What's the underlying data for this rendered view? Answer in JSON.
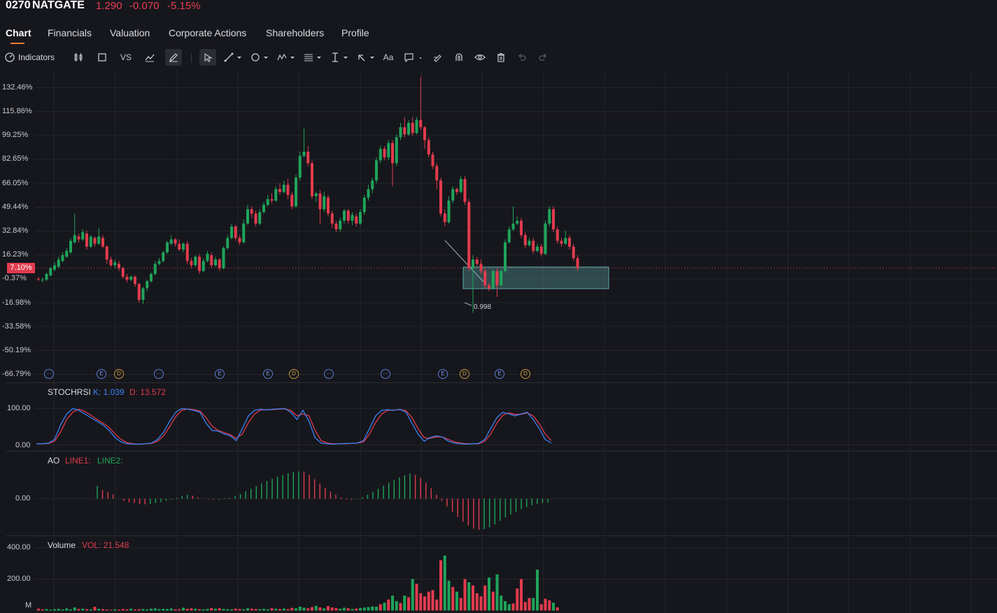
{
  "header": {
    "ticker": "0270",
    "name": "NATGATE",
    "price": "1.290",
    "change": "-0.070",
    "change_pct": "-5.15%"
  },
  "tabs": [
    {
      "label": "Chart",
      "active": true
    },
    {
      "label": "Financials"
    },
    {
      "label": "Valuation"
    },
    {
      "label": "Corporate Actions"
    },
    {
      "label": "Shareholders"
    },
    {
      "label": "Profile"
    }
  ],
  "toolbar": {
    "indicators_label": "Indicators",
    "vs_label": "VS",
    "text_tool_label": "Aa",
    "icons": [
      "indicators-gauge-icon",
      "candlestick-icon",
      "rectangle-icon",
      "compare-vs-icon",
      "chart-type-icon",
      "pen-icon",
      "cursor-icon",
      "trend-line-icon",
      "circle-shape-icon",
      "pattern-icon",
      "fibonacci-icon",
      "measure-icon",
      "arrow-icon",
      "text-icon",
      "comment-icon",
      "brush-icon",
      "magnet-icon",
      "eye-icon",
      "trash-icon",
      "undo-icon",
      "redo-icon"
    ]
  },
  "colors": {
    "up": "#1fa45a",
    "down": "#e23b4e",
    "background": "#16171c",
    "grid": "#24262d",
    "k_line": "#3b82f6",
    "d_line": "#e23b4e"
  },
  "main_axis": {
    "labels": [
      "132.46%",
      "115.86%",
      "99.25%",
      "82.65%",
      "66.05%",
      "49.44%",
      "32.84%",
      "16.23%",
      "-0.37%",
      "-16.98%",
      "-33.58%",
      "-50.19%",
      "-66.79%"
    ],
    "current_tag": "7.10%",
    "low_marker_label": "0.998"
  },
  "events": [
    "···",
    "E",
    "D",
    "···",
    "E",
    "E",
    "D",
    "···",
    "···",
    "E",
    "D",
    "E",
    "D"
  ],
  "stochrsi": {
    "title": "STOCHRSI",
    "k_label": "K: 1.039",
    "d_label": "D: 13.572",
    "axis": [
      "100.00",
      "0.00"
    ]
  },
  "ao": {
    "title": "AO",
    "line1_label": "LINE1:",
    "line2_label": "LINE2:",
    "axis": [
      "0.00"
    ]
  },
  "volume": {
    "title": "Volume",
    "vol_label": "VOL: 21.548",
    "axis": [
      "400.00",
      "200.00"
    ],
    "unit": "M"
  },
  "chart_data": {
    "type": "candlestick",
    "title": "",
    "y_unit": "% change",
    "ylim": [
      -66.79,
      132.46
    ],
    "candles": [
      [
        -0.5,
        -1.0,
        1.0,
        -2.0
      ],
      [
        -1.5,
        -1.0,
        0.5,
        -3.0
      ],
      [
        -1.0,
        3.0,
        4.0,
        -2.0
      ],
      [
        2.0,
        7.0,
        8.0,
        1.0
      ],
      [
        6.0,
        9.0,
        11.0,
        5.0
      ],
      [
        8.0,
        13.0,
        15.0,
        7.0
      ],
      [
        12.0,
        16.0,
        18.0,
        11.0
      ],
      [
        15.0,
        19.0,
        21.0,
        14.0
      ],
      [
        18.0,
        26.0,
        28.0,
        17.0
      ],
      [
        25.0,
        30.0,
        45.0,
        24.0
      ],
      [
        29.0,
        27.0,
        31.0,
        25.0
      ],
      [
        27.0,
        32.0,
        34.0,
        26.0
      ],
      [
        31.0,
        22.0,
        33.0,
        20.0
      ],
      [
        22.0,
        29.0,
        30.0,
        21.0
      ],
      [
        28.0,
        24.0,
        29.0,
        22.0
      ],
      [
        24.0,
        29.0,
        35.0,
        23.0
      ],
      [
        28.0,
        22.0,
        30.0,
        21.0
      ],
      [
        22.0,
        13.0,
        23.0,
        10.0
      ],
      [
        13.0,
        9.0,
        15.0,
        8.0
      ],
      [
        9.0,
        11.0,
        13.0,
        7.0
      ],
      [
        10.0,
        7.0,
        12.0,
        5.0
      ],
      [
        7.0,
        1.0,
        8.0,
        0.0
      ],
      [
        1.0,
        -1.0,
        3.0,
        -3.0
      ],
      [
        -1.0,
        1.0,
        2.0,
        -2.0
      ],
      [
        1.0,
        -4.0,
        2.0,
        -6.0
      ],
      [
        -4.0,
        -15.0,
        -3.0,
        -17.0
      ],
      [
        -15.0,
        -7.0,
        -6.0,
        -18.0
      ],
      [
        -7.0,
        -2.0,
        -1.0,
        -9.0
      ],
      [
        -2.0,
        3.0,
        4.0,
        -3.0
      ],
      [
        3.0,
        10.0,
        12.0,
        2.0
      ],
      [
        10.0,
        12.0,
        14.0,
        9.0
      ],
      [
        12.0,
        18.0,
        19.0,
        11.0
      ],
      [
        18.0,
        25.0,
        26.0,
        17.0
      ],
      [
        24.0,
        27.0,
        30.0,
        23.0
      ],
      [
        27.0,
        24.0,
        28.0,
        22.0
      ],
      [
        24.0,
        20.0,
        27.0,
        19.0
      ],
      [
        20.0,
        24.0,
        25.0,
        18.0
      ],
      [
        24.0,
        12.0,
        26.0,
        10.0
      ],
      [
        12.0,
        9.0,
        14.0,
        7.0
      ],
      [
        9.0,
        15.0,
        16.0,
        8.0
      ],
      [
        15.0,
        5.0,
        17.0,
        3.0
      ],
      [
        5.0,
        12.0,
        14.0,
        4.0
      ],
      [
        12.0,
        17.0,
        19.0,
        11.0
      ],
      [
        16.0,
        9.0,
        18.0,
        7.0
      ],
      [
        9.0,
        13.0,
        15.0,
        8.0
      ],
      [
        13.0,
        7.0,
        14.0,
        5.0
      ],
      [
        7.0,
        21.0,
        22.0,
        6.0
      ],
      [
        21.0,
        28.0,
        30.0,
        20.0
      ],
      [
        28.0,
        36.0,
        38.0,
        27.0
      ],
      [
        36.0,
        28.0,
        37.0,
        26.0
      ],
      [
        28.0,
        25.0,
        30.0,
        23.0
      ],
      [
        25.0,
        38.0,
        41.0,
        24.0
      ],
      [
        38.0,
        48.0,
        51.0,
        37.0
      ],
      [
        48.0,
        45.0,
        50.0,
        42.0
      ],
      [
        45.0,
        38.0,
        47.0,
        36.0
      ],
      [
        38.0,
        46.0,
        48.0,
        37.0
      ],
      [
        46.0,
        51.0,
        53.0,
        45.0
      ],
      [
        51.0,
        55.0,
        58.0,
        50.0
      ],
      [
        55.0,
        54.0,
        59.0,
        52.0
      ],
      [
        54.0,
        62.0,
        64.0,
        53.0
      ],
      [
        62.0,
        60.0,
        66.0,
        58.0
      ],
      [
        60.0,
        65.0,
        68.0,
        59.0
      ],
      [
        65.0,
        58.0,
        69.0,
        55.0
      ],
      [
        58.0,
        50.0,
        60.0,
        48.0
      ],
      [
        50.0,
        70.0,
        72.0,
        49.0
      ],
      [
        70.0,
        85.0,
        88.0,
        68.0
      ],
      [
        85.0,
        88.0,
        104.0,
        84.0
      ],
      [
        88.0,
        80.0,
        92.0,
        78.0
      ],
      [
        80.0,
        57.0,
        82.0,
        55.0
      ],
      [
        57.0,
        59.0,
        60.0,
        53.0
      ],
      [
        59.0,
        48.0,
        61.0,
        38.0
      ],
      [
        48.0,
        57.0,
        60.0,
        46.0
      ],
      [
        56.0,
        45.0,
        58.0,
        43.0
      ],
      [
        45.0,
        38.0,
        47.0,
        35.0
      ],
      [
        38.0,
        34.0,
        40.0,
        32.0
      ],
      [
        34.0,
        40.0,
        42.0,
        32.0
      ],
      [
        40.0,
        47.0,
        48.0,
        38.0
      ],
      [
        47.0,
        40.0,
        48.0,
        38.0
      ],
      [
        40.0,
        44.0,
        46.0,
        37.0
      ],
      [
        43.0,
        38.0,
        45.0,
        36.0
      ],
      [
        38.0,
        46.0,
        48.0,
        37.0
      ],
      [
        46.0,
        56.0,
        58.0,
        44.0
      ],
      [
        56.0,
        62.0,
        65.0,
        54.0
      ],
      [
        62.0,
        68.0,
        70.0,
        59.0
      ],
      [
        68.0,
        82.0,
        84.0,
        66.0
      ],
      [
        82.0,
        90.0,
        92.0,
        80.0
      ],
      [
        90.0,
        84.0,
        92.0,
        82.0
      ],
      [
        84.0,
        94.0,
        96.0,
        82.0
      ],
      [
        94.0,
        80.0,
        96.0,
        64.0
      ],
      [
        80.0,
        98.0,
        100.0,
        78.0
      ],
      [
        98.0,
        105.0,
        108.0,
        96.0
      ],
      [
        105.0,
        100.0,
        112.0,
        98.0
      ],
      [
        100.0,
        108.0,
        110.0,
        99.0
      ],
      [
        108.0,
        101.0,
        112.0,
        99.0
      ],
      [
        101.0,
        110.0,
        112.0,
        100.0
      ],
      [
        110.0,
        105.0,
        140.0,
        103.0
      ],
      [
        105.0,
        96.0,
        106.0,
        90.0
      ],
      [
        96.0,
        86.0,
        98.0,
        84.0
      ],
      [
        86.0,
        78.0,
        88.0,
        76.0
      ],
      [
        78.0,
        68.0,
        80.0,
        62.0
      ],
      [
        68.0,
        45.0,
        70.0,
        43.0
      ],
      [
        45.0,
        39.0,
        48.0,
        36.0
      ],
      [
        39.0,
        54.0,
        57.0,
        38.0
      ],
      [
        54.0,
        62.0,
        64.0,
        52.0
      ],
      [
        62.0,
        60.0,
        63.0,
        58.0
      ],
      [
        60.0,
        69.0,
        71.0,
        59.0
      ],
      [
        69.0,
        53.0,
        71.0,
        51.0
      ],
      [
        53.0,
        7.0,
        55.0,
        5.0
      ],
      [
        7.0,
        13.0,
        16.0,
        -24.0
      ],
      [
        13.0,
        10.0,
        15.0,
        8.0
      ],
      [
        10.0,
        5.0,
        13.0,
        3.0
      ],
      [
        5.0,
        -5.0,
        7.0,
        -7.0
      ],
      [
        -5.0,
        -7.0,
        -3.0,
        -9.0
      ],
      [
        -7.0,
        5.0,
        6.0,
        -8.0
      ],
      [
        5.0,
        -5.0,
        7.0,
        -13.0
      ],
      [
        -5.0,
        5.0,
        6.0,
        -6.0
      ],
      [
        5.0,
        25.0,
        27.0,
        4.0
      ],
      [
        25.0,
        34.0,
        36.0,
        24.0
      ],
      [
        34.0,
        38.0,
        50.0,
        33.0
      ],
      [
        38.0,
        40.0,
        43.0,
        37.0
      ],
      [
        40.0,
        30.0,
        42.0,
        28.0
      ],
      [
        30.0,
        23.0,
        32.0,
        21.0
      ],
      [
        23.0,
        26.0,
        28.0,
        22.0
      ],
      [
        26.0,
        19.0,
        28.0,
        17.0
      ],
      [
        19.0,
        22.0,
        24.0,
        18.0
      ],
      [
        22.0,
        17.0,
        24.0,
        15.0
      ],
      [
        17.0,
        38.0,
        40.0,
        16.0
      ],
      [
        38.0,
        48.0,
        50.0,
        36.0
      ],
      [
        48.0,
        34.0,
        50.0,
        32.0
      ],
      [
        34.0,
        26.0,
        36.0,
        24.0
      ],
      [
        26.0,
        24.0,
        28.0,
        22.0
      ],
      [
        24.0,
        28.0,
        33.0,
        23.0
      ],
      [
        28.0,
        22.0,
        30.0,
        20.0
      ],
      [
        22.0,
        14.0,
        24.0,
        12.0
      ],
      [
        14.0,
        7.1,
        16.0,
        5.0
      ]
    ],
    "stochrsi_k": [
      3,
      3,
      5,
      15,
      55,
      85,
      100,
      95,
      85,
      75,
      65,
      55,
      40,
      20,
      8,
      3,
      2,
      2,
      3,
      5,
      15,
      35,
      65,
      90,
      100,
      98,
      95,
      90,
      60,
      40,
      38,
      30,
      25,
      12,
      45,
      80,
      95,
      98,
      96,
      98,
      99,
      100,
      90,
      70,
      95,
      65,
      20,
      5,
      3,
      2,
      3,
      4,
      4,
      5,
      12,
      45,
      80,
      95,
      97,
      95,
      98,
      90,
      60,
      30,
      10,
      20,
      25,
      22,
      10,
      5,
      3,
      2,
      3,
      4,
      15,
      45,
      75,
      90,
      85,
      80,
      85,
      90,
      70,
      45,
      15,
      5
    ],
    "stochrsi_d": [
      3,
      3,
      4,
      10,
      35,
      70,
      90,
      98,
      92,
      82,
      70,
      60,
      48,
      30,
      15,
      6,
      3,
      2,
      3,
      4,
      10,
      25,
      50,
      78,
      95,
      99,
      97,
      93,
      75,
      52,
      40,
      34,
      28,
      18,
      30,
      62,
      85,
      96,
      97,
      97,
      98,
      99,
      95,
      80,
      85,
      80,
      40,
      12,
      5,
      3,
      3,
      3,
      4,
      5,
      8,
      30,
      62,
      85,
      95,
      96,
      97,
      94,
      75,
      45,
      20,
      18,
      22,
      22,
      15,
      8,
      5,
      3,
      3,
      3,
      10,
      30,
      60,
      82,
      88,
      84,
      84,
      88,
      80,
      58,
      30,
      12
    ],
    "ao": [
      3,
      2,
      1.5,
      1,
      0,
      -0.5,
      -0.8,
      -1,
      -1.2,
      -1.3,
      -1.2,
      -1,
      -0.8,
      -0.5,
      -0.2,
      0.2,
      0.6,
      0.9,
      0.7,
      0.3,
      0,
      -0.1,
      -0.2,
      -0.2,
      -0.1,
      0.2,
      0.6,
      1.1,
      1.7,
      2.3,
      2.9,
      3.5,
      4.1,
      4.6,
      5.1,
      5.5,
      5.9,
      6.2,
      6.3,
      6.2,
      5.5,
      4.5,
      3.5,
      2.5,
      1.6,
      0.9,
      0.3,
      -0.2,
      -0.3,
      -0.1,
      0.3,
      0.9,
      1.6,
      2.3,
      3.0,
      3.7,
      4.3,
      4.9,
      5.4,
      5.8,
      5.5,
      4.8,
      3.7,
      2.4,
      0.9,
      -0.5,
      -1.8,
      -3.0,
      -4.2,
      -5.3,
      -6.2,
      -6.9,
      -7.2,
      -7.0,
      -6.6,
      -5.9,
      -5.1,
      -4.3,
      -3.6,
      -3.0,
      -2.4,
      -1.9,
      -1.5,
      -1.2,
      -1.0,
      -0.9
    ],
    "volume": [
      12,
      8,
      10,
      6,
      9,
      11,
      7,
      14,
      8,
      20,
      10,
      12,
      9,
      8,
      24,
      11,
      9,
      7,
      5,
      8,
      6,
      10,
      8,
      12,
      7,
      9,
      10,
      8,
      12,
      14,
      9,
      11,
      10,
      13,
      8,
      9,
      18,
      11,
      14,
      12,
      9,
      8,
      10,
      16,
      12,
      15,
      11,
      9,
      8,
      12,
      10,
      8,
      14,
      12,
      10,
      9,
      11,
      8,
      15,
      12,
      10,
      13,
      9,
      17,
      14,
      25,
      18,
      14,
      22,
      30,
      20,
      14,
      28,
      20,
      16,
      12,
      18,
      15,
      10,
      13,
      16,
      19,
      22,
      26,
      25,
      40,
      50,
      70,
      95,
      60,
      48,
      95,
      85,
      200,
      170,
      110,
      90,
      120,
      130,
      70,
      320,
      350,
      190,
      150,
      120,
      80,
      200,
      180,
      160,
      110,
      90,
      160,
      210,
      120,
      230,
      95,
      60,
      40,
      45,
      140,
      200,
      55,
      80,
      80,
      260,
      40,
      75,
      65,
      50,
      20
    ],
    "volume_up": [
      false,
      false,
      true,
      true,
      true,
      true,
      true,
      true,
      true,
      true,
      false,
      true,
      false,
      true,
      false,
      true,
      false,
      false,
      false,
      true,
      false,
      false,
      false,
      true,
      false,
      false,
      true,
      true,
      true,
      true,
      true,
      true,
      true,
      true,
      false,
      false,
      true,
      false,
      false,
      true,
      false,
      true,
      true,
      false,
      true,
      false,
      true,
      true,
      true,
      false,
      false,
      true,
      true,
      false,
      false,
      true,
      true,
      true,
      false,
      true,
      false,
      true,
      false,
      false,
      true,
      true,
      true,
      false,
      false,
      true,
      false,
      true,
      false,
      false,
      false,
      true,
      true,
      false,
      true,
      false,
      true,
      true,
      true,
      true,
      true,
      false,
      true,
      false,
      true,
      true,
      false,
      true,
      false,
      true,
      false,
      false,
      false,
      false,
      false,
      false,
      false,
      true,
      true,
      false,
      true,
      false,
      false,
      true,
      false,
      false,
      false,
      false,
      true,
      false,
      true,
      true,
      true,
      true,
      false,
      false,
      false,
      false,
      false,
      true,
      true,
      false,
      false,
      false,
      true,
      false
    ]
  }
}
